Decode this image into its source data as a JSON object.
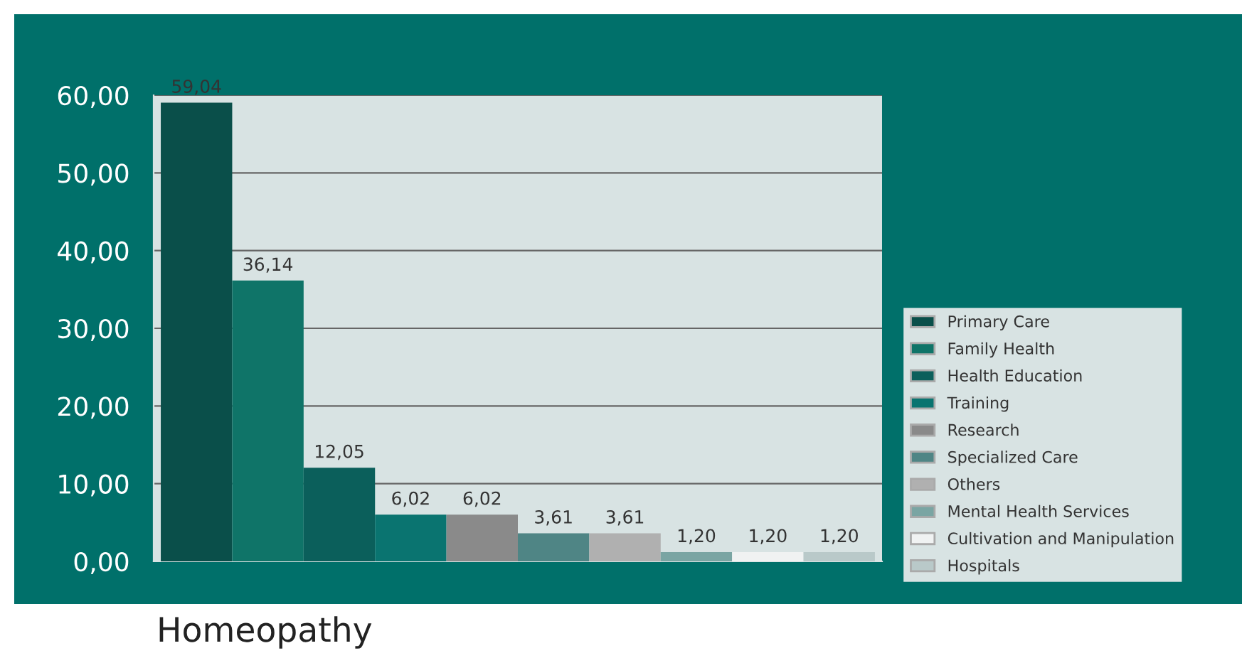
{
  "chart_data": {
    "type": "bar",
    "title": "Homeopathy",
    "categories": [
      null,
      null,
      null,
      null,
      null,
      null,
      null,
      null,
      null,
      null
    ],
    "series": [
      {
        "name": "Primary Care",
        "color": "#0a4f4a",
        "values": [
          59.04,
          null,
          null,
          null,
          null,
          null,
          null,
          null,
          null,
          null
        ],
        "value_labels": [
          "59,04",
          null,
          null,
          null,
          null,
          null,
          null,
          null,
          null,
          null
        ]
      },
      {
        "name": "Family Health",
        "color": "#0f7468",
        "values": [
          null,
          36.14,
          null,
          null,
          null,
          null,
          null,
          null,
          null,
          null
        ],
        "value_labels": [
          null,
          "36,14",
          null,
          null,
          null,
          null,
          null,
          null,
          null,
          null
        ]
      },
      {
        "name": "Health Education",
        "color": "#0b5f5b",
        "values": [
          null,
          null,
          12.05,
          null,
          null,
          null,
          null,
          null,
          null,
          null
        ],
        "value_labels": [
          null,
          null,
          "12,05",
          null,
          null,
          null,
          null,
          null,
          null,
          null
        ]
      },
      {
        "name": "Training",
        "color": "#0a7470",
        "values": [
          null,
          null,
          null,
          6.02,
          null,
          null,
          null,
          null,
          null,
          null
        ],
        "value_labels": [
          null,
          null,
          null,
          "6,02",
          null,
          null,
          null,
          null,
          null,
          null
        ]
      },
      {
        "name": "Research",
        "color": "#8a8a8a",
        "values": [
          null,
          null,
          null,
          null,
          6.02,
          null,
          null,
          null,
          null,
          null
        ],
        "value_labels": [
          null,
          null,
          null,
          null,
          "6,02",
          null,
          null,
          null,
          null,
          null
        ]
      },
      {
        "name": "Specialized Care",
        "color": "#4f8585",
        "values": [
          null,
          null,
          null,
          null,
          null,
          3.61,
          null,
          null,
          null,
          null
        ],
        "value_labels": [
          null,
          null,
          null,
          null,
          null,
          "3,61",
          null,
          null,
          null,
          null
        ]
      },
      {
        "name": "Others",
        "color": "#b0b0b0",
        "values": [
          null,
          null,
          null,
          null,
          null,
          null,
          3.61,
          null,
          null,
          null
        ],
        "value_labels": [
          null,
          null,
          null,
          null,
          null,
          null,
          "3,61",
          null,
          null,
          null
        ]
      },
      {
        "name": "Mental Health Services",
        "color": "#7aa5a3",
        "values": [
          null,
          null,
          null,
          null,
          null,
          null,
          null,
          1.2,
          null,
          null
        ],
        "value_labels": [
          null,
          null,
          null,
          null,
          null,
          null,
          null,
          "1,20",
          null,
          null
        ]
      },
      {
        "name": "Cultivation and Manipulation",
        "color": "#f0f2f2",
        "values": [
          null,
          null,
          null,
          null,
          null,
          null,
          null,
          null,
          1.2,
          null
        ],
        "value_labels": [
          null,
          null,
          null,
          null,
          null,
          null,
          null,
          null,
          "1,20",
          null
        ]
      },
      {
        "name": "Hospitals",
        "color": "#b9c9c9",
        "values": [
          null,
          null,
          null,
          null,
          null,
          null,
          null,
          null,
          null,
          1.2
        ],
        "value_labels": [
          null,
          null,
          null,
          null,
          null,
          null,
          null,
          null,
          null,
          "1,20"
        ]
      }
    ],
    "ylim": [
      0,
      60
    ],
    "yticks": [
      {
        "value": 0,
        "label": "0,00"
      },
      {
        "value": 10,
        "label": "10,00"
      },
      {
        "value": 20,
        "label": "20,00"
      },
      {
        "value": 30,
        "label": "30,00"
      },
      {
        "value": 40,
        "label": "40,00"
      },
      {
        "value": 50,
        "label": "50,00"
      },
      {
        "value": 60,
        "label": "60,00"
      }
    ],
    "tick_labels": "y",
    "grid": "y",
    "legend": "right"
  }
}
